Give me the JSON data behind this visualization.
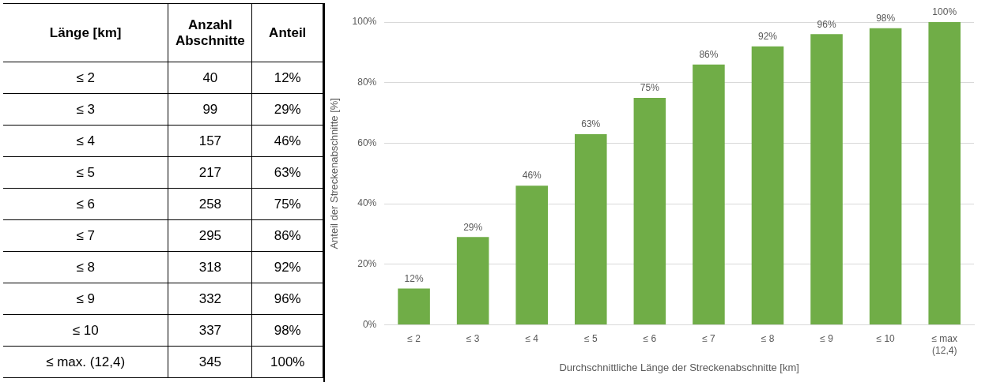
{
  "chart_data": [
    {
      "type": "other",
      "xlabel": "Länge [km]",
      "data_labels": true,
      "categories": [
        "≤ 2",
        "≤ 3",
        "≤ 4",
        "≤ 5",
        "≤ 6",
        "≤ 7",
        "≤ 8",
        "≤ 9",
        "≤ 10",
        "≤ max. (12,4)"
      ],
      "series": [
        {
          "name": "Anzahl Abschnitte",
          "values": [
            40,
            99,
            157,
            217,
            258,
            295,
            318,
            332,
            337,
            345
          ]
        },
        {
          "name": "Anteil",
          "values": [
            12,
            29,
            46,
            63,
            75,
            86,
            92,
            96,
            98,
            100
          ],
          "value_labels": [
            "12%",
            "29%",
            "46%",
            "63%",
            "75%",
            "86%",
            "92%",
            "96%",
            "98%",
            "100%"
          ]
        }
      ]
    },
    {
      "type": "bar",
      "categories": [
        "≤ 2",
        "≤ 3",
        "≤ 4",
        "≤ 5",
        "≤ 6",
        "≤ 7",
        "≤ 8",
        "≤ 9",
        "≤ 10",
        "≤ max\n(12,4)"
      ],
      "values": [
        12,
        29,
        46,
        63,
        75,
        86,
        92,
        96,
        98,
        100
      ],
      "value_labels": [
        "12%",
        "29%",
        "46%",
        "63%",
        "75%",
        "86%",
        "92%",
        "96%",
        "98%",
        "100%"
      ],
      "color": "#70ad47",
      "xlabel": "Durchschnittliche Länge der Streckenabschnitte [km]",
      "ylabel": "Anteil der Streckenabschnitte [%]",
      "ylim": [
        0,
        100
      ],
      "yticks": [
        {
          "value": 0,
          "label": "0%"
        },
        {
          "value": 20,
          "label": "20%"
        },
        {
          "value": 40,
          "label": "40%"
        },
        {
          "value": 60,
          "label": "60%"
        },
        {
          "value": 80,
          "label": "80%"
        },
        {
          "value": 100,
          "label": "100%"
        }
      ],
      "grid": "y"
    }
  ]
}
